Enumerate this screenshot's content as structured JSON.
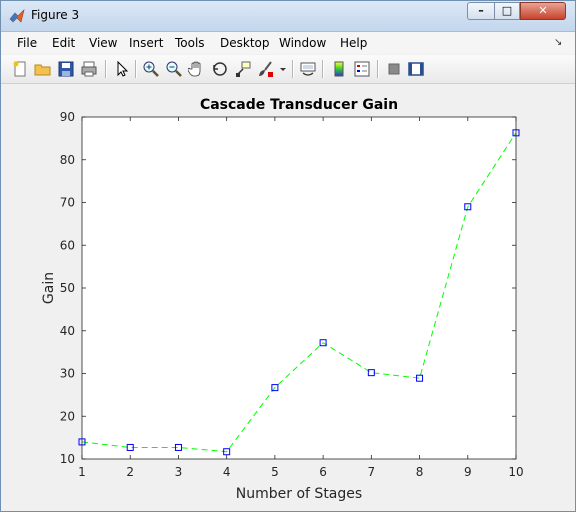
{
  "window": {
    "title": "Figure 3",
    "minimize_label": "–",
    "maximize_label": "□",
    "close_label": "✕"
  },
  "menu": [
    "File",
    "Edit",
    "View",
    "Insert",
    "Tools",
    "Desktop",
    "Window",
    "Help"
  ],
  "toolbar_icons": [
    "new-figure-icon",
    "open-file-icon",
    "save-icon",
    "print-icon",
    "edit-plot-arrow-icon",
    "zoom-in-icon",
    "zoom-out-icon",
    "pan-hand-icon",
    "rotate-3d-icon",
    "data-cursor-icon",
    "brush-icon",
    "brush-dropdown-icon",
    "link-plot-icon",
    "insert-colorbar-icon",
    "insert-legend-icon",
    "hide-plot-tools-icon",
    "show-plot-tools-icon"
  ],
  "colors": {
    "line": "#00ff00",
    "marker": "#0000ff",
    "axes_bg": "#ffffff",
    "figure_bg": "#f0f0f0"
  },
  "chart_data": {
    "type": "line",
    "title": "Cascade Transducer Gain",
    "xlabel": "Number of Stages",
    "ylabel": "Gain",
    "xlim": [
      1,
      10
    ],
    "ylim": [
      10,
      90
    ],
    "xticks": [
      1,
      2,
      3,
      4,
      5,
      6,
      7,
      8,
      9,
      10
    ],
    "yticks": [
      10,
      20,
      30,
      40,
      50,
      60,
      70,
      80,
      90
    ],
    "grid": false,
    "line_style": "dashed",
    "marker": "square",
    "series": [
      {
        "x": [
          1,
          2,
          3,
          4,
          5,
          6,
          7,
          8,
          9,
          10
        ],
        "values": [
          14.0,
          12.7,
          12.7,
          11.7,
          26.7,
          37.2,
          30.2,
          28.9,
          69.0,
          86.3
        ]
      }
    ]
  }
}
